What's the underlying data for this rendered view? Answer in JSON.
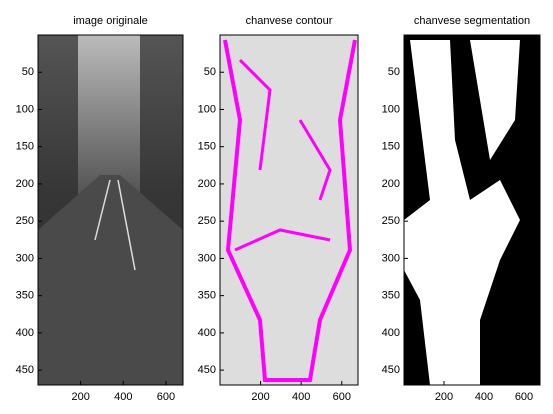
{
  "chart_data": [
    {
      "type": "image",
      "title": "image originale",
      "xlim": [
        0,
        680
      ],
      "ylim": [
        0,
        470
      ],
      "xticks": [
        200,
        400,
        600
      ],
      "yticks": [
        50,
        100,
        150,
        200,
        250,
        300,
        350,
        400,
        450
      ]
    },
    {
      "type": "image",
      "title": "chanvese contour",
      "xlim": [
        0,
        680
      ],
      "ylim": [
        0,
        470
      ],
      "xticks": [
        200,
        400,
        600
      ],
      "yticks": [
        50,
        100,
        150,
        200,
        250,
        300,
        350,
        400,
        450
      ]
    },
    {
      "type": "image",
      "title": "chanvese segmentation",
      "xlim": [
        0,
        680
      ],
      "ylim": [
        0,
        470
      ],
      "xticks": [
        200,
        400,
        600
      ],
      "yticks": [
        50,
        100,
        150,
        200,
        250,
        300,
        350,
        400,
        450
      ]
    }
  ]
}
